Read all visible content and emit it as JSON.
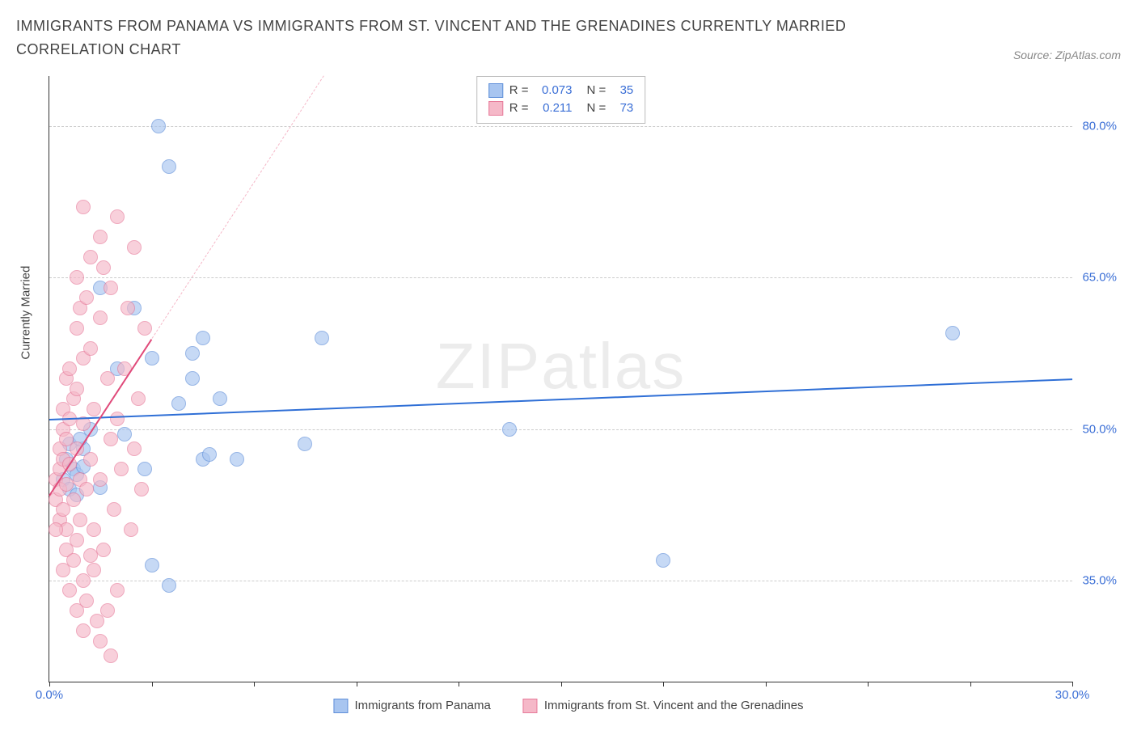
{
  "title": "IMMIGRANTS FROM PANAMA VS IMMIGRANTS FROM ST. VINCENT AND THE GRENADINES CURRENTLY MARRIED CORRELATION CHART",
  "source": "Source: ZipAtlas.com",
  "watermark": "ZIPatlas",
  "chart": {
    "type": "scatter",
    "y_axis_title": "Currently Married",
    "x_range": [
      0,
      30
    ],
    "y_range": [
      25,
      85
    ],
    "x_ticks": [
      0,
      3,
      6,
      9,
      12,
      15,
      18,
      21,
      24,
      27,
      30
    ],
    "x_tick_labels": {
      "0": "0.0%",
      "30": "30.0%"
    },
    "y_ticks": [
      35,
      50,
      65,
      80
    ],
    "y_tick_labels": {
      "35": "35.0%",
      "50": "50.0%",
      "65": "65.0%",
      "80": "80.0%"
    },
    "grid_color": "#cccccc",
    "background_color": "#ffffff",
    "axis_color": "#333333",
    "tick_label_color": "#3b6fd6",
    "title_fontsize": 18,
    "label_fontsize": 15
  },
  "series": [
    {
      "id": "panama",
      "label": "Immigrants from Panama",
      "color_fill": "#a8c5f0",
      "color_stroke": "#5f8fd9",
      "marker_size": 18,
      "R": "0.073",
      "N": "35",
      "regression": {
        "x1": 0,
        "y1": 51,
        "x2": 30,
        "y2": 55,
        "color": "#2f6fd6",
        "width": 2,
        "ext_color": "#a8c5f0"
      },
      "points": [
        [
          0.4,
          45
        ],
        [
          0.5,
          47
        ],
        [
          0.6,
          44
        ],
        [
          0.7,
          46
        ],
        [
          0.8,
          45.5
        ],
        [
          0.8,
          43.5
        ],
        [
          1.0,
          48
        ],
        [
          1.2,
          50
        ],
        [
          1.5,
          64
        ],
        [
          2.0,
          56
        ],
        [
          2.2,
          49.5
        ],
        [
          2.5,
          62
        ],
        [
          2.8,
          46
        ],
        [
          3.0,
          57
        ],
        [
          3.2,
          80
        ],
        [
          3.5,
          76
        ],
        [
          3.5,
          34.5
        ],
        [
          3.8,
          52.5
        ],
        [
          4.2,
          57.5
        ],
        [
          4.2,
          55
        ],
        [
          4.5,
          59
        ],
        [
          4.5,
          47
        ],
        [
          4.7,
          47.5
        ],
        [
          5.0,
          53
        ],
        [
          5.5,
          47
        ],
        [
          7.5,
          48.5
        ],
        [
          8.0,
          59
        ],
        [
          13.5,
          50
        ],
        [
          18.0,
          37
        ],
        [
          26.5,
          59.5
        ],
        [
          3.0,
          36.5
        ],
        [
          1.5,
          44.2
        ],
        [
          0.6,
          48.5
        ],
        [
          1.0,
          46.3
        ],
        [
          0.9,
          49
        ]
      ]
    },
    {
      "id": "stvincent",
      "label": "Immigrants from St. Vincent and the Grenadines",
      "color_fill": "#f5b8c8",
      "color_stroke": "#e77a9a",
      "marker_size": 18,
      "R": "0.211",
      "N": "73",
      "regression": {
        "x1": 0,
        "y1": 43.5,
        "x2": 3.0,
        "y2": 59,
        "color": "#e04a7a",
        "width": 2,
        "ext_color": "#f5b8c8"
      },
      "points": [
        [
          0.2,
          43
        ],
        [
          0.2,
          45
        ],
        [
          0.3,
          44
        ],
        [
          0.3,
          46
        ],
        [
          0.3,
          48
        ],
        [
          0.3,
          41
        ],
        [
          0.4,
          42
        ],
        [
          0.4,
          47
        ],
        [
          0.4,
          50
        ],
        [
          0.4,
          52
        ],
        [
          0.5,
          44.5
        ],
        [
          0.5,
          49
        ],
        [
          0.5,
          55
        ],
        [
          0.5,
          38
        ],
        [
          0.5,
          40
        ],
        [
          0.6,
          46.5
        ],
        [
          0.6,
          51
        ],
        [
          0.6,
          56
        ],
        [
          0.7,
          53
        ],
        [
          0.7,
          43
        ],
        [
          0.7,
          37
        ],
        [
          0.8,
          48
        ],
        [
          0.8,
          54
        ],
        [
          0.8,
          60
        ],
        [
          0.8,
          65
        ],
        [
          0.8,
          39
        ],
        [
          0.9,
          45
        ],
        [
          0.9,
          62
        ],
        [
          0.9,
          41
        ],
        [
          1.0,
          50.5
        ],
        [
          1.0,
          57
        ],
        [
          1.0,
          35
        ],
        [
          1.0,
          72
        ],
        [
          1.1,
          44
        ],
        [
          1.1,
          63
        ],
        [
          1.1,
          33
        ],
        [
          1.2,
          47
        ],
        [
          1.2,
          58
        ],
        [
          1.2,
          67
        ],
        [
          1.3,
          40
        ],
        [
          1.3,
          52
        ],
        [
          1.3,
          36
        ],
        [
          1.4,
          31
        ],
        [
          1.5,
          45
        ],
        [
          1.5,
          69
        ],
        [
          1.5,
          61
        ],
        [
          1.5,
          29
        ],
        [
          1.6,
          66
        ],
        [
          1.6,
          38
        ],
        [
          1.7,
          55
        ],
        [
          1.7,
          32
        ],
        [
          1.8,
          49
        ],
        [
          1.8,
          64
        ],
        [
          1.8,
          27.5
        ],
        [
          1.9,
          42
        ],
        [
          2.0,
          51
        ],
        [
          2.0,
          71
        ],
        [
          2.0,
          34
        ],
        [
          2.1,
          46
        ],
        [
          2.2,
          56
        ],
        [
          2.3,
          62
        ],
        [
          2.4,
          40
        ],
        [
          2.5,
          48
        ],
        [
          2.5,
          68
        ],
        [
          2.6,
          53
        ],
        [
          2.7,
          44
        ],
        [
          2.8,
          60
        ],
        [
          0.2,
          40
        ],
        [
          0.4,
          36
        ],
        [
          0.6,
          34
        ],
        [
          0.8,
          32
        ],
        [
          1.0,
          30
        ],
        [
          1.2,
          37.5
        ]
      ]
    }
  ],
  "legend_box": {
    "R_label": "R =",
    "N_label": "N ="
  },
  "bottom_legend": {
    "items": [
      "panama",
      "stvincent"
    ]
  }
}
